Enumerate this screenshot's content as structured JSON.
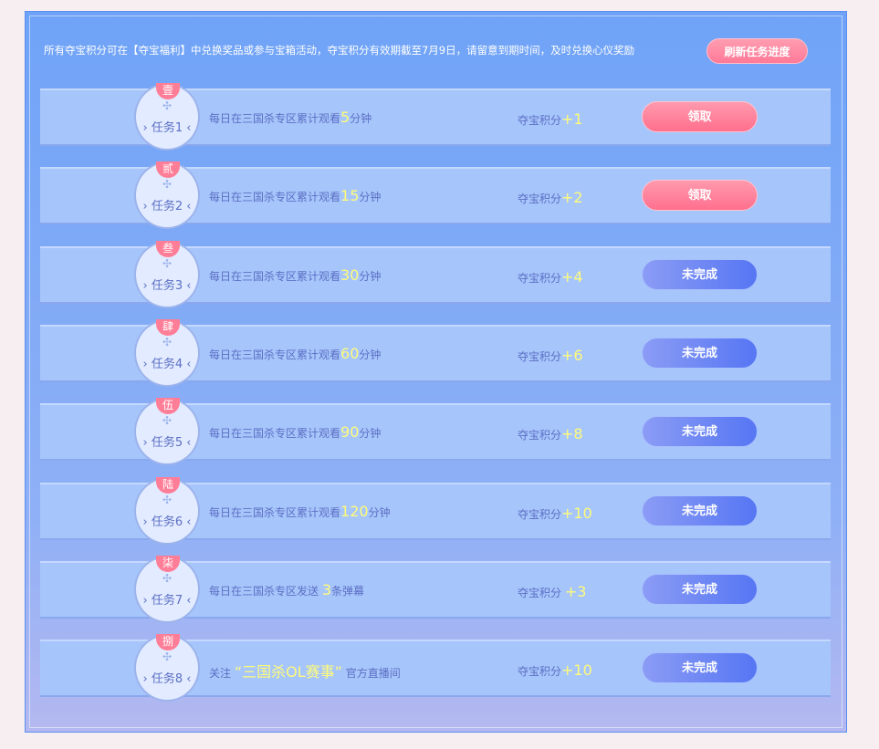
{
  "notice": "所有夺宝积分可在【夺宝福利】中兑换奖品或参与宝箱活动，夺宝积分有效期截至7月9日，请留意到期时间，及时兑换心仪奖励",
  "refresh_label": "刷新任务进度",
  "tasks": [
    {
      "badge": "壹",
      "name": "任务1",
      "pre": "每日在三国杀专区累计观看",
      "hl": "5",
      "post": "分钟",
      "pts_label": "夺宝积分",
      "pts": "+1",
      "button": "领取",
      "state": "claim"
    },
    {
      "badge": "贰",
      "name": "任务2",
      "pre": "每日在三国杀专区累计观看",
      "hl": "15",
      "post": "分钟",
      "pts_label": "夺宝积分",
      "pts": "+2",
      "button": "领取",
      "state": "claim"
    },
    {
      "badge": "叁",
      "name": "任务3",
      "pre": "每日在三国杀专区累计观看",
      "hl": "30",
      "post": "分钟",
      "pts_label": "夺宝积分",
      "pts": "+4",
      "button": "未完成",
      "state": "todo"
    },
    {
      "badge": "肆",
      "name": "任务4",
      "pre": "每日在三国杀专区累计观看",
      "hl": "60",
      "post": "分钟",
      "pts_label": "夺宝积分",
      "pts": "+6",
      "button": "未完成",
      "state": "todo"
    },
    {
      "badge": "伍",
      "name": "任务5",
      "pre": "每日在三国杀专区累计观看",
      "hl": "90",
      "post": "分钟",
      "pts_label": "夺宝积分",
      "pts": "+8",
      "button": "未完成",
      "state": "todo"
    },
    {
      "badge": "陆",
      "name": "任务6",
      "pre": "每日在三国杀专区累计观看",
      "hl": "120",
      "post": "分钟",
      "pts_label": "夺宝积分",
      "pts": "+10",
      "button": "未完成",
      "state": "todo"
    },
    {
      "badge": "柒",
      "name": "任务7",
      "pre": "每日在三国杀专区发送 ",
      "hl": "3",
      "post": "条弹幕",
      "pts_label": "夺宝积分 ",
      "pts": "+3",
      "button": "未完成",
      "state": "todo"
    },
    {
      "badge": "捌",
      "name": "任务8",
      "pre": "关注  ",
      "hl": "“三国杀OL赛事”",
      "post": " 官方直播间",
      "pts_label": "夺宝积分",
      "pts": "+10",
      "button": "未完成",
      "state": "todo"
    }
  ]
}
